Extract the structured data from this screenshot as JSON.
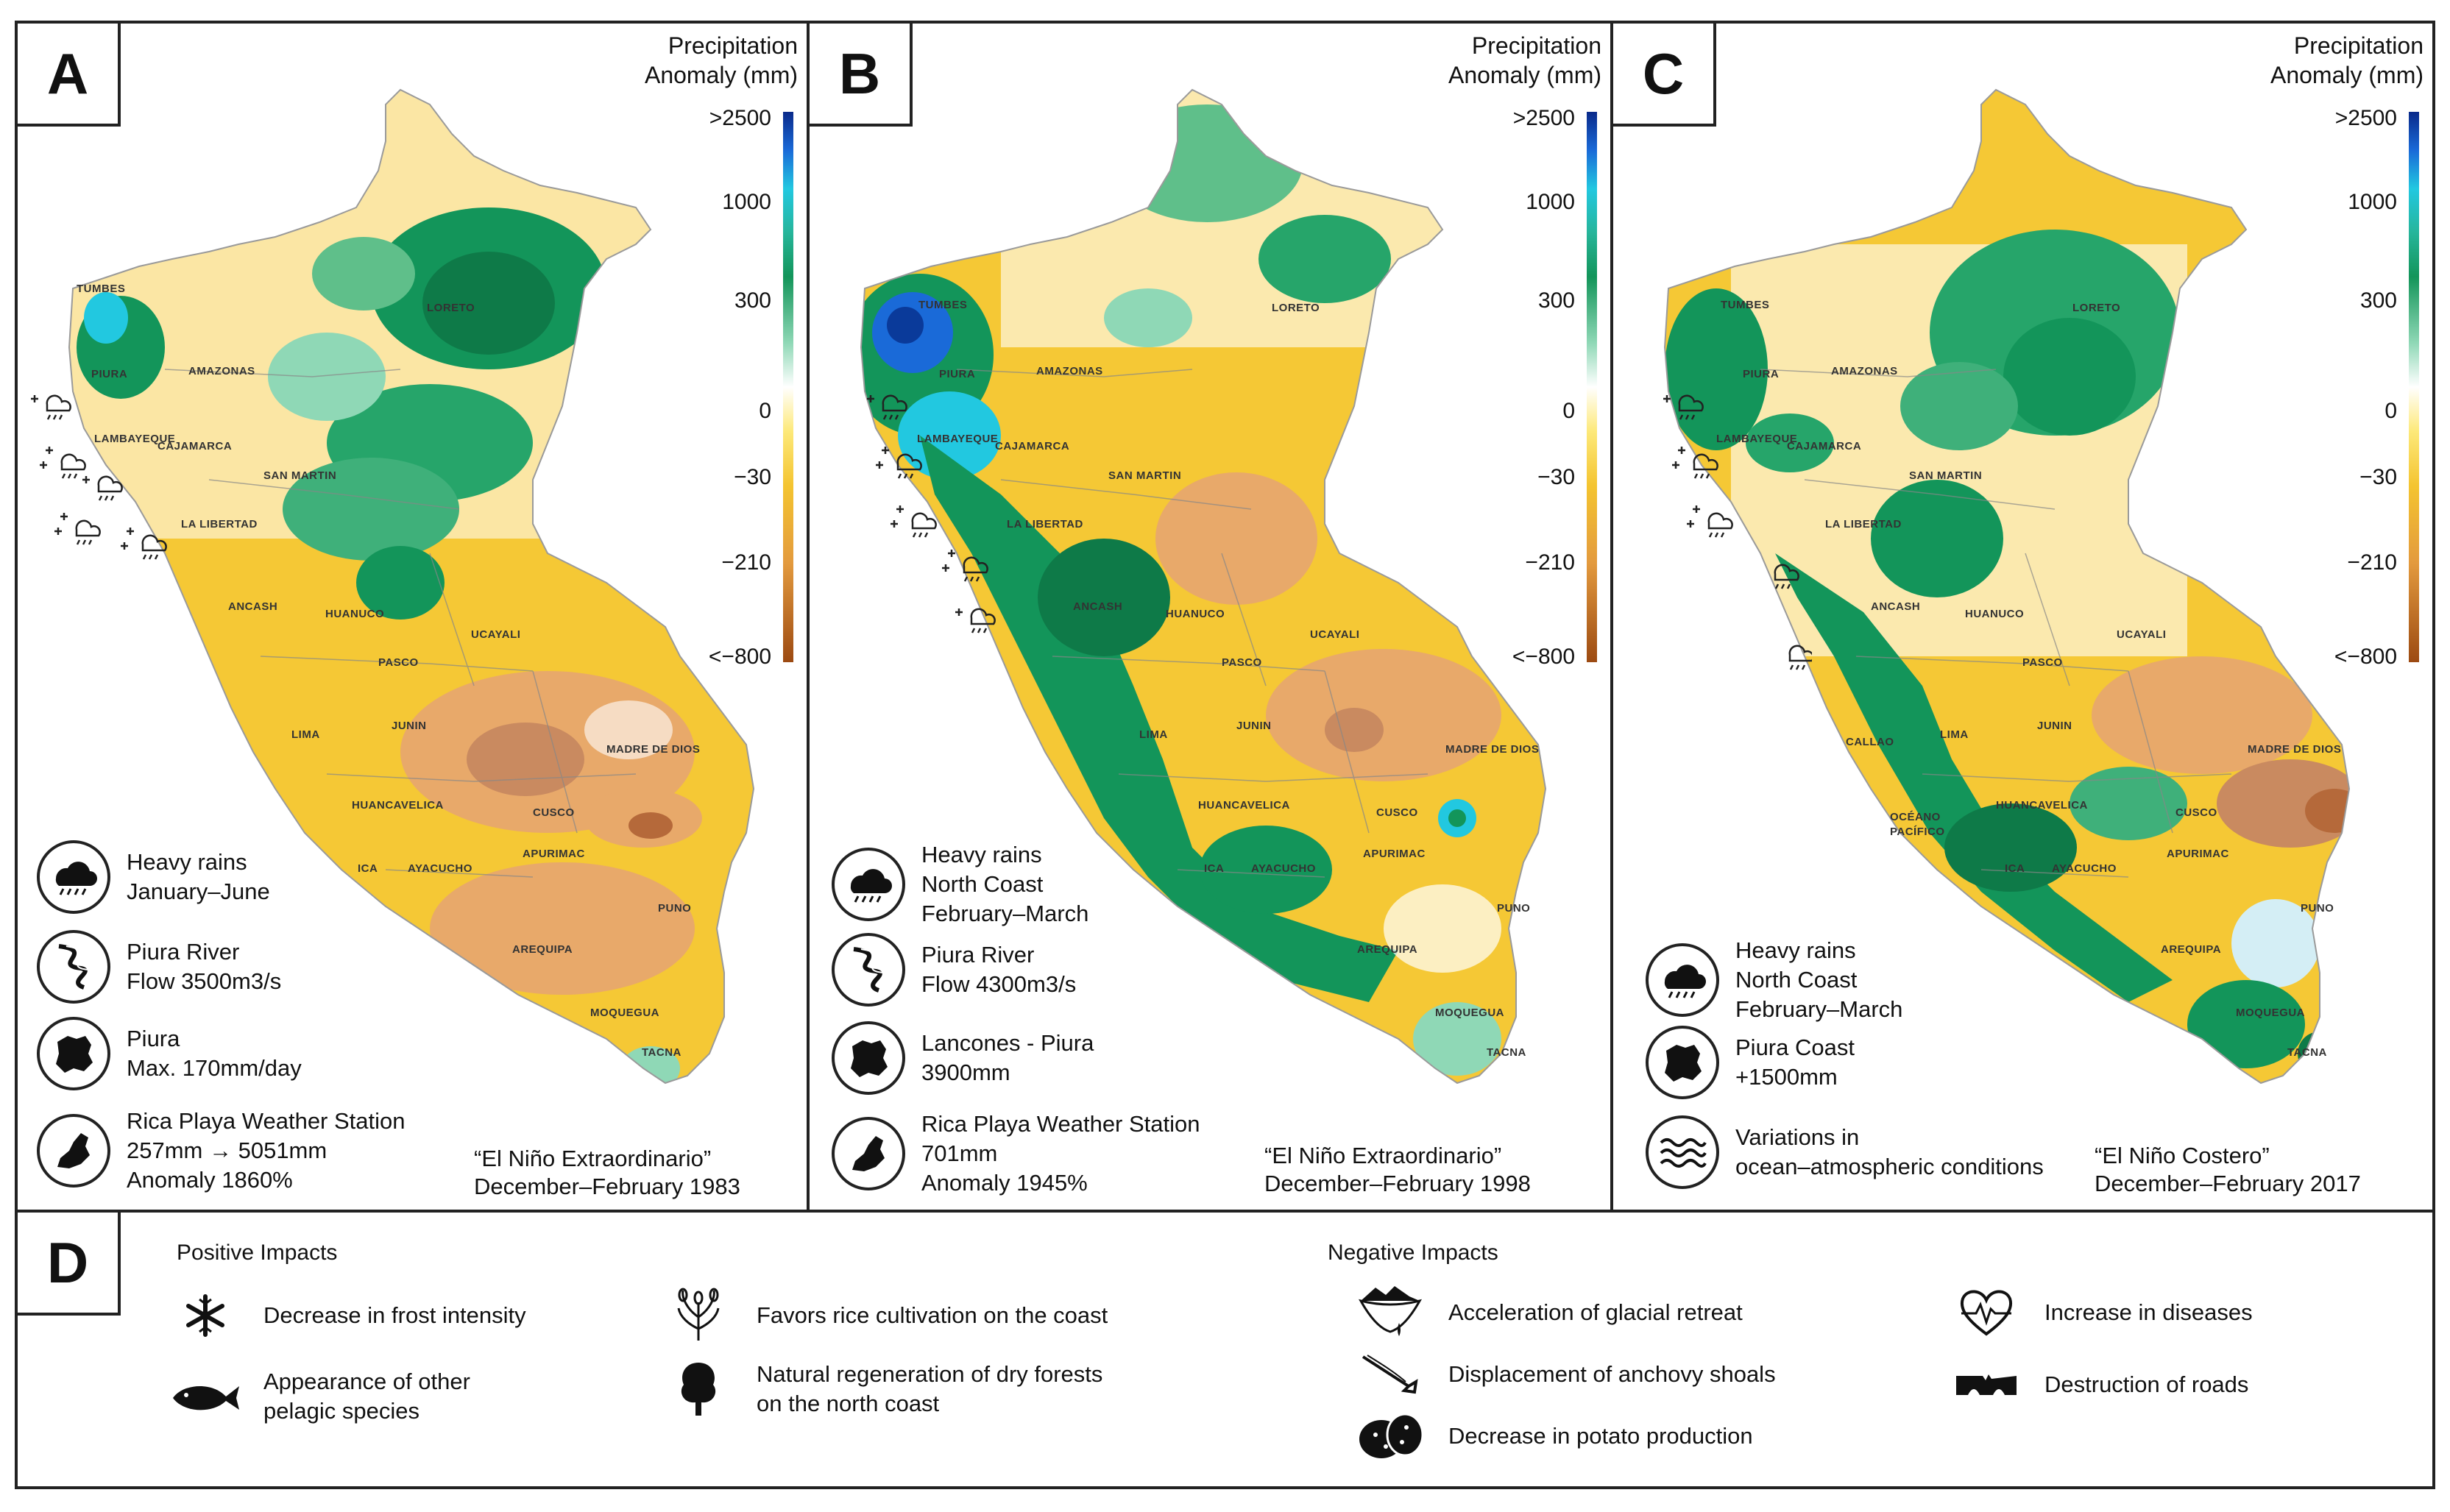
{
  "colorbar": {
    "title": "Precipitation\nAnomaly (mm)",
    "ticks": [
      ">2500",
      "1000",
      "300",
      "0",
      "−30",
      "−210",
      "<−800"
    ]
  },
  "panels": [
    {
      "letter": "A",
      "impacts": [
        {
          "icon": "heavy-rain-icon",
          "text": "Heavy rains\nJanuary–June"
        },
        {
          "icon": "river-icon",
          "text": "Piura River\nFlow 3500m3/s"
        },
        {
          "icon": "region-map-icon",
          "text": "Piura\nMax. 170mm/day"
        },
        {
          "icon": "weather-station-map-icon",
          "text": "Rica Playa Weather Station\n257mm → 5051mm\nAnomaly 1860%"
        }
      ],
      "caption": "“El Niño Extraordinario”\nDecember–February 1983",
      "regions": [
        "TUMBES",
        "PIURA",
        "AMAZONAS",
        "LORETO",
        "LAMBAYEQUE",
        "CAJAMARCA",
        "SAN MARTIN",
        "LA LIBERTAD",
        "ANCASH",
        "HUANUCO",
        "UCAYALI",
        "PASCO",
        "LIMA",
        "JUNIN",
        "MADRE DE DIOS",
        "HUANCAVELICA",
        "CUSCO",
        "ICA",
        "AYACUCHO",
        "APURIMAC",
        "PUNO",
        "AREQUIPA",
        "MOQUEGUA",
        "TACNA"
      ]
    },
    {
      "letter": "B",
      "impacts": [
        {
          "icon": "heavy-rain-icon",
          "text": "Heavy rains\nNorth Coast\nFebruary–March"
        },
        {
          "icon": "river-icon",
          "text": "Piura River\nFlow 4300m3/s"
        },
        {
          "icon": "region-map-icon",
          "text": "Lancones - Piura\n3900mm"
        },
        {
          "icon": "weather-station-map-icon",
          "text": "Rica Playa Weather Station\n701mm\nAnomaly 1945%"
        }
      ],
      "caption": "“El Niño Extraordinario”\nDecember–February 1998",
      "regions": [
        "TUMBES",
        "PIURA",
        "AMAZONAS",
        "LORETO",
        "LAMBAYEQUE",
        "CAJAMARCA",
        "SAN MARTIN",
        "LA LIBERTAD",
        "ANCASH",
        "HUANUCO",
        "UCAYALI",
        "PASCO",
        "LIMA",
        "JUNIN",
        "MADRE DE DIOS",
        "HUANCAVELICA",
        "CUSCO",
        "ICA",
        "AYACUCHO",
        "APURIMAC",
        "PUNO",
        "AREQUIPA",
        "MOQUEGUA",
        "TACNA"
      ]
    },
    {
      "letter": "C",
      "impacts": [
        {
          "icon": "heavy-rain-icon",
          "text": "Heavy rains\nNorth Coast\nFebruary–March"
        },
        {
          "icon": "region-map-icon",
          "text": "Piura Coast\n+1500mm"
        },
        {
          "icon": "ocean-waves-icon",
          "text": "Variations in\nocean–atmospheric conditions"
        }
      ],
      "caption": "“El Niño Costero”\nDecember–February 2017",
      "regions": [
        "TUMBES",
        "PIURA",
        "AMAZONAS",
        "LORETO",
        "LAMBAYEQUE",
        "CAJAMARCA",
        "SAN MARTIN",
        "LA LIBERTAD",
        "ANCASH",
        "HUANUCO",
        "UCAYALI",
        "PASCO",
        "CALLAO",
        "LIMA",
        "JUNIN",
        "MADRE DE DIOS",
        "HUANCAVELICA",
        "CUSCO",
        "ICA",
        "AYACUCHO",
        "APURIMAC",
        "PUNO",
        "AREQUIPA",
        "MOQUEGUA",
        "TACNA",
        "OCÉANO",
        "PACÍFICO"
      ]
    }
  ],
  "legend": {
    "letter": "D",
    "positive_title": "Positive Impacts",
    "negative_title": "Negative Impacts",
    "positive": [
      {
        "icon": "snowflake-icon",
        "text": "Decrease in frost intensity"
      },
      {
        "icon": "fish-icon",
        "text": "Appearance of other\npelagic species"
      },
      {
        "icon": "rice-plant-icon",
        "text": "Favors rice cultivation on the coast"
      },
      {
        "icon": "tree-icon",
        "text": "Natural regeneration of dry forests\non the north coast"
      }
    ],
    "negative": [
      {
        "icon": "glacier-icon",
        "text": "Acceleration of glacial retreat"
      },
      {
        "icon": "anchovy-icon",
        "text": "Displacement of anchovy shoals"
      },
      {
        "icon": "potato-icon",
        "text": "Decrease in potato production"
      },
      {
        "icon": "heart-pulse-icon",
        "text": "Increase in diseases"
      },
      {
        "icon": "broken-road-icon",
        "text": "Destruction of roads"
      }
    ]
  },
  "colors": {
    "wet_strong": "#0a3a9a",
    "wet_cyan": "#22c8e0",
    "wet_green": "#13955a",
    "wet_light": "#8fd8b6",
    "neutral": "#ffffff",
    "dry_yellow": "#f5c835",
    "dry_orange": "#e8a96a",
    "dry_brown": "#c98a60"
  }
}
